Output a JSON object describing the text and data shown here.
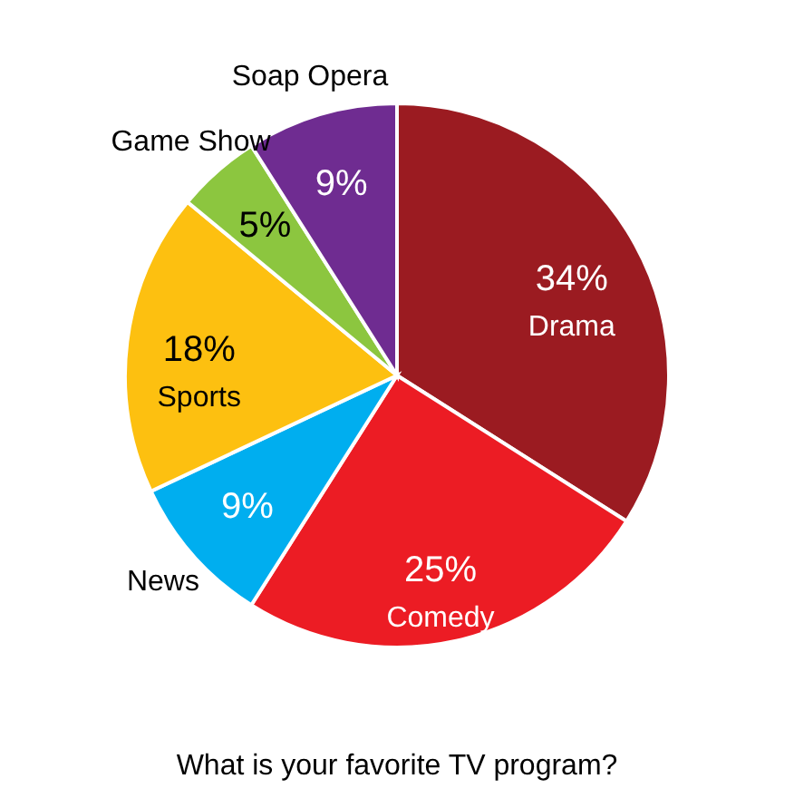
{
  "chart_data": {
    "type": "pie",
    "title": "What is your favorite TV program?",
    "categories": [
      "Drama",
      "Comedy",
      "News",
      "Sports",
      "Game Show",
      "Soap Opera"
    ],
    "values": [
      34,
      25,
      9,
      18,
      5,
      9
    ],
    "value_labels": [
      "34%",
      "25%",
      "9%",
      "18%",
      "5%",
      "9%"
    ],
    "colors": [
      "#9b1b21",
      "#ec1c24",
      "#00aeef",
      "#fdc010",
      "#8cc63f",
      "#6f2c91"
    ],
    "legend": false
  }
}
